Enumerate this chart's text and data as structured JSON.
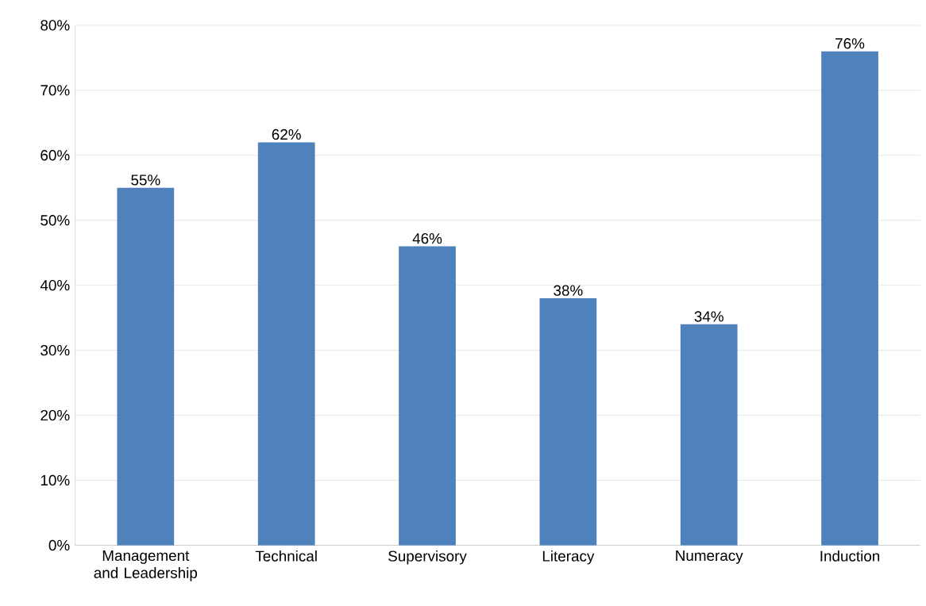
{
  "chart_data": {
    "type": "bar",
    "categories": [
      "Management and Leadership",
      "Technical",
      "Supervisory",
      "Literacy",
      "Numeracy",
      "Induction"
    ],
    "values": [
      55,
      62,
      46,
      38,
      34,
      76
    ],
    "value_labels": [
      "55%",
      "62%",
      "46%",
      "38%",
      "34%",
      "76%"
    ],
    "color": "#4f81bd",
    "ylim": [
      0,
      80
    ],
    "yticks": [
      {
        "value": 0,
        "label": "0%"
      },
      {
        "value": 10,
        "label": "10%"
      },
      {
        "value": 20,
        "label": "20%"
      },
      {
        "value": 30,
        "label": "30%"
      },
      {
        "value": 40,
        "label": "40%"
      },
      {
        "value": 50,
        "label": "50%"
      },
      {
        "value": 60,
        "label": "60%"
      },
      {
        "value": 70,
        "label": "70%"
      },
      {
        "value": 80,
        "label": "80%"
      }
    ],
    "grid": "y"
  }
}
